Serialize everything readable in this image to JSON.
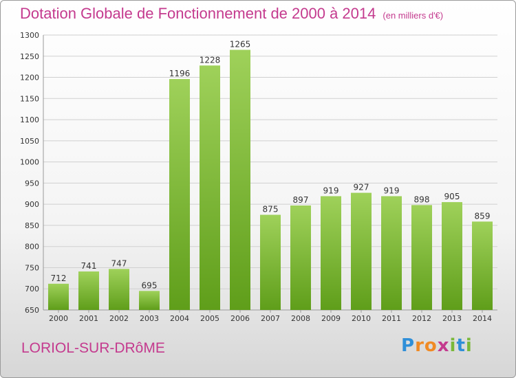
{
  "title": "Dotation Globale de Fonctionnement de 2000 à 2014",
  "subtitle": "(en milliers d'€)",
  "commune": "LORIOL-SUR-DRôME",
  "logo": {
    "text": "Proxiti",
    "letters": [
      {
        "ch": "P",
        "color": "#2f8fd8"
      },
      {
        "ch": "r",
        "color": "#f08a24"
      },
      {
        "ch": "o",
        "color": "#f08a24"
      },
      {
        "ch": "x",
        "color": "#c43a8e"
      },
      {
        "ch": "i",
        "color": "#7ab83a"
      },
      {
        "ch": "t",
        "color": "#2f8fd8"
      },
      {
        "ch": "i",
        "color": "#7ab83a"
      }
    ]
  },
  "colors": {
    "accent": "#c43a8e",
    "bar_light": "#9fd15a",
    "bar_dark": "#5f9e1a",
    "grid": "#cfcfcf"
  },
  "chart_data": {
    "type": "bar",
    "categories": [
      "2000",
      "2001",
      "2002",
      "2003",
      "2004",
      "2005",
      "2006",
      "2007",
      "2008",
      "2009",
      "2010",
      "2011",
      "2012",
      "2013",
      "2014"
    ],
    "values": [
      712,
      741,
      747,
      695,
      1196,
      1228,
      1265,
      875,
      897,
      919,
      927,
      919,
      898,
      905,
      859
    ],
    "ylim": [
      650,
      1300
    ],
    "yticks": [
      650,
      700,
      750,
      800,
      850,
      900,
      950,
      1000,
      1050,
      1100,
      1150,
      1200,
      1250,
      1300
    ],
    "grid": true,
    "data_labels": true
  }
}
